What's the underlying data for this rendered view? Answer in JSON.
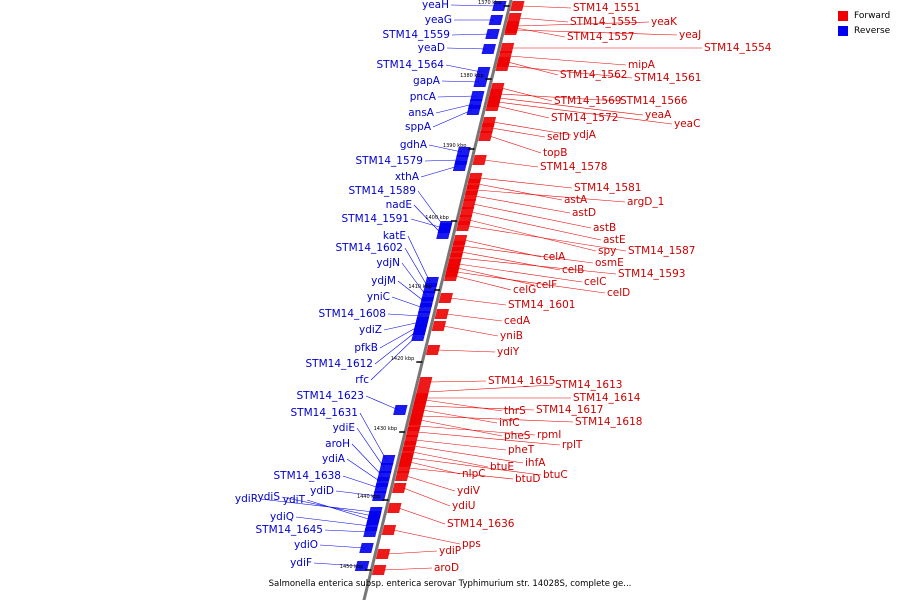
{
  "caption": "Salmonella enterica subsp. enterica serovar Typhimurium str. 14028S, complete ge...",
  "legend": {
    "forward_label": "Forward",
    "reverse_label": "Reverse",
    "forward_color": "#ee0000",
    "reverse_color": "#0000ee"
  },
  "colors": {
    "axis": "#777777",
    "forward_text": "#cc0000",
    "reverse_text": "#0000cc"
  },
  "ticks": [
    "1370 kbp",
    "1380 kbp",
    "1390 kbp",
    "1400 kbp",
    "1410 kbp",
    "1420 kbp",
    "1430 kbp",
    "1440 kbp",
    "1450 kbp"
  ],
  "reverse_genes": [
    "yeaH",
    "yeaG",
    "STM14_1559",
    "yeaD",
    "STM14_1564",
    "gapA",
    "pncA",
    "ansA",
    "sppA",
    "gdhA",
    "STM14_1579",
    "xthA",
    "STM14_1589",
    "nadE",
    "STM14_1591",
    "katE",
    "STM14_1602",
    "ydjN",
    "ydjM",
    "yniC",
    "STM14_1608",
    "ydiZ",
    "pfkB",
    "STM14_1612",
    "rfc",
    "STM14_1623",
    "STM14_1631",
    "ydiE",
    "aroH",
    "ydiA",
    "STM14_1638",
    "ydiD",
    "ydiR",
    "ydiS",
    "ydiT",
    "ydiQ",
    "STM14_1645",
    "ydiO",
    "ydiF"
  ],
  "forward_genes": [
    "STM14_1551",
    "STM14_1555",
    "yeaK",
    "STM14_1557",
    "yeaJ",
    "STM14_1554",
    "mipA",
    "STM14_1562",
    "STM14_1561",
    "STM14_1569",
    "STM14_1566",
    "yeaA",
    "STM14_1572",
    "yeaC",
    "ydjA",
    "selD",
    "topB",
    "STM14_1578",
    "STM14_1581",
    "astA",
    "argD_1",
    "astD",
    "astB",
    "astE",
    "spy",
    "STM14_1587",
    "celA",
    "osmE",
    "celB",
    "STM14_1593",
    "celC",
    "celF",
    "celD",
    "celG",
    "STM14_1601",
    "cedA",
    "yniB",
    "ydiY",
    "STM14_1615",
    "STM14_1613",
    "STM14_1614",
    "thrS",
    "STM14_1617",
    "infC",
    "STM14_1618",
    "pheS",
    "rpmI",
    "rplT",
    "pheT",
    "ihfA",
    "btuE",
    "btuC",
    "nlpC",
    "btuD",
    "ydiV",
    "ydiU",
    "STM14_1636",
    "pps",
    "ydiP",
    "aroD"
  ]
}
